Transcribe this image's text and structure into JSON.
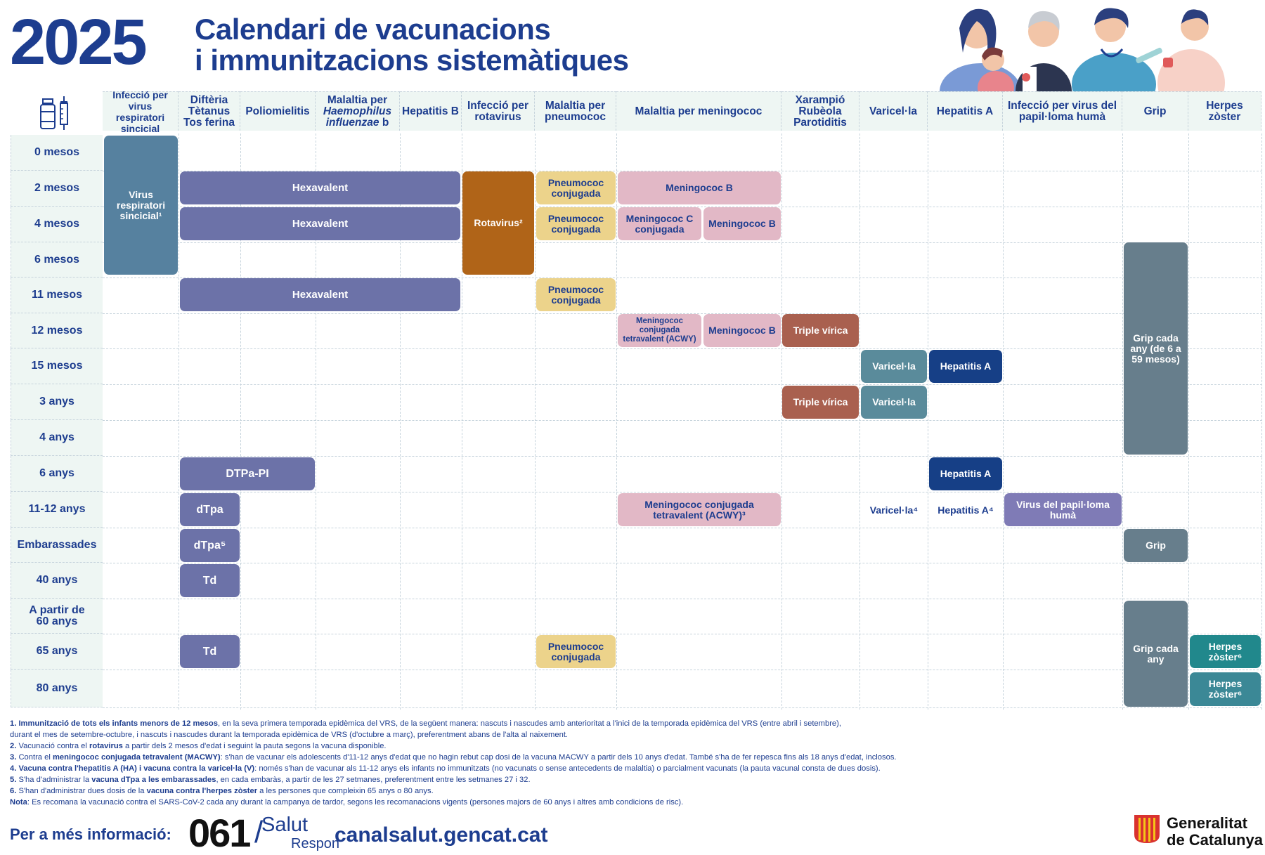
{
  "header": {
    "year": "2025",
    "title_line1": "Calendari de vacunacions",
    "title_line2": "i immunitzacions sistemàtiques"
  },
  "columns": [
    {
      "id": "vrs",
      "label": "Infecció per virus respiratori sincicial"
    },
    {
      "id": "dtp",
      "label": "Diftèria Tètanus Tos ferina"
    },
    {
      "id": "polio",
      "label": "Poliomielitis"
    },
    {
      "id": "hib",
      "label_prefix": "Malaltia per",
      "label_italic": "Haemophilus influenzae",
      "label_suffix": "b"
    },
    {
      "id": "hepb",
      "label": "Hepatitis B"
    },
    {
      "id": "rota",
      "label": "Infecció per rotavirus"
    },
    {
      "id": "pneumo",
      "label": "Malaltia per pneumococ"
    },
    {
      "id": "mening",
      "label": "Malaltia per meningococ"
    },
    {
      "id": "xrp",
      "label": "Xarampió Rubèola Parotiditis"
    },
    {
      "id": "varic",
      "label": "Varicel·la"
    },
    {
      "id": "hepa",
      "label": "Hepatitis A"
    },
    {
      "id": "vph",
      "label": "Infecció per virus del papil·loma humà"
    },
    {
      "id": "grip",
      "label": "Grip"
    },
    {
      "id": "herpes",
      "label": "Herpes zòster"
    }
  ],
  "rows": [
    "0 mesos",
    "2 mesos",
    "4 mesos",
    "6 mesos",
    "11 mesos",
    "12 mesos",
    "15 mesos",
    "3 anys",
    "4 anys",
    "6 anys",
    "11-12 anys",
    "Embarassades",
    "40 anys",
    "A partir de 60 anys",
    "65 anys",
    "80 anys"
  ],
  "cells": {
    "vrs": "Virus respiratori sincicial¹",
    "hexa1": "Hexavalent",
    "hexa2": "Hexavalent",
    "hexa3": "Hexavalent",
    "rota": "Rotavirus²",
    "pneumo1": "Pneumococ conjugada",
    "pneumo2": "Pneumococ conjugada",
    "pneumo3": "Pneumococ conjugada",
    "pneumo4": "Pneumococ conjugada",
    "menb1": "Meningococ B",
    "menc": "Meningococ C conjugada",
    "menb2": "Meningococ B",
    "acwy1": "Meningococ conjugada tetravalent (ACWY)",
    "menb3": "Meningococ B",
    "tv1": "Triple vírica",
    "tv2": "Triple vírica",
    "var1": "Varicel·la",
    "var2": "Varicel·la",
    "var3": "Varicel·la⁴",
    "hepa1": "Hepatitis A",
    "hepa2": "Hepatitis A",
    "hepa3": "Hepatitis A⁴",
    "dtpapi": "DTPa-PI",
    "dtpa": "dTpa",
    "dtpa5": "dTpa⁵",
    "td1": "Td",
    "td2": "Td",
    "acwy2": "Meningococ conjugada tetravalent (ACWY)³",
    "vph": "Virus del papil·loma humà",
    "grip1": "Grip cada any (de 6 a 59 mesos)",
    "grip2": "Grip",
    "grip3": "Grip cada any",
    "herp1": "Herpes zòster⁶",
    "herp2": "Herpes zòster⁶"
  },
  "notes": [
    {
      "n": "1.",
      "b": "Immunització de tots els infants menors de 12 mesos",
      "t": ", en la seva primera temporada epidèmica del VRS, de la següent manera: nascuts i nascudes amb anterioritat a l'inici de la temporada epidèmica del VRS (entre abril i setembre),"
    },
    {
      "n": "",
      "b": "",
      "t": "   durant el mes de setembre-octubre, i nascuts i nascudes durant la temporada epidèmica de VRS (d'octubre a març), preferentment abans de l'alta al naixement."
    },
    {
      "n": "2.",
      "b": "",
      "t": " Vacunació contra el ",
      "b2": "rotavirus",
      "t2": " a partir dels 2 mesos d'edat i seguint la pauta segons la vacuna disponible."
    },
    {
      "n": "3.",
      "b": "",
      "t": " Contra el ",
      "b2": "meningococ conjugada tetravalent (MACWY)",
      "t2": ": s'han de vacunar els adolescents d'11-12 anys d'edat que no hagin rebut cap dosi de la vacuna MACWY a partir dels 10 anys d'edat. També s'ha de fer repesca fins als 18 anys d'edat, inclosos."
    },
    {
      "n": "4.",
      "b": " Vacuna contra l'hepatitis A (HA) i vacuna contra la varicel·la (V)",
      "t": ": només s'han de vacunar als 11-12 anys els infants no immunitzats (no vacunats o sense antecedents de malaltia) o parcialment vacunats (la pauta vacunal consta de dues dosis)."
    },
    {
      "n": "5.",
      "b": "",
      "t": " S'ha d'administrar la ",
      "b2": "vacuna dTpa a les embarassades",
      "t2": ", en cada embaràs, a partir de les 27 setmanes, preferentment entre les setmanes 27 i 32."
    },
    {
      "n": "6.",
      "b": "",
      "t": " S'han d'administrar dues dosis de la ",
      "b2": "vacuna contra l'herpes zòster",
      "t2": " a les persones que compleixin 65 anys o 80 anys."
    },
    {
      "n": "Nota",
      "b": "",
      "t": ": Es recomana la vacunació contra el SARS-CoV-2 cada any durant la campanya de tardor, segons les recomanacions vigents (persones majors de 60 anys i altres amb condicions de risc)."
    }
  ],
  "footer": {
    "info_label": "Per a més informació:",
    "phone": "061",
    "salut": "Salut",
    "respon": "Respon",
    "url": "canalsalut.gencat.cat",
    "org_line1": "Generalitat",
    "org_line2": "de Catalunya"
  }
}
